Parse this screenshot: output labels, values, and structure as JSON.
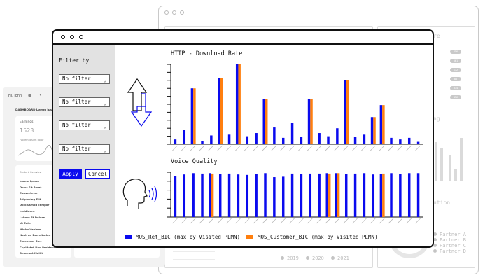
{
  "back_right": {
    "right_label_1": "re",
    "right_label_2": "ng",
    "right_label_3": "ution",
    "pill_values": [
      "456",
      "561",
      "132",
      "88",
      "334",
      "456"
    ],
    "years": [
      "2019",
      "2020",
      "2021"
    ],
    "partners": [
      "Partner A",
      "Partner B",
      "Partner C",
      "Partner D"
    ]
  },
  "back_left": {
    "greeting": "Hi, John",
    "subtitle": "DASHBOARD Lorem Ipsum",
    "earnings_label": "Earnings",
    "earnings_value": "1523",
    "earnings_note": "*Lorem ipsum dolor",
    "list_header": "Content Overview",
    "list_items": [
      "Lorem Ipsum",
      "Dolor Sit Amet",
      "Consectetur",
      "Adipiscing Elit",
      "Do Eiusmod Tempor",
      "Incididunt",
      "Labore Et Dolore",
      "Ut Enim",
      "Minim Veniam",
      "Nostrud Exercitation",
      "Excepteur Sint",
      "Cupidatat Non Proident",
      "Deserunt Mollit"
    ]
  },
  "sidebar": {
    "title": "Filter by",
    "filters": [
      "No filter",
      "No filter",
      "No filter",
      "No filter"
    ],
    "apply_label": "Apply",
    "cancel_label": "Cancel"
  },
  "colors": {
    "series_ref": "#0a0aee",
    "series_customer": "#ff7f0e"
  },
  "icons": [
    "download-arrows-icon",
    "speaking-head-icon"
  ],
  "chart_data": [
    {
      "type": "bar",
      "title": "HTTP - Download Rate",
      "categories": [
        "",
        "",
        "",
        "",
        "",
        "",
        "",
        "",
        "",
        "",
        "",
        "",
        "",
        "",
        "",
        "",
        "",
        "",
        "",
        "",
        "",
        "",
        "",
        "",
        "",
        "",
        "",
        ""
      ],
      "ylim": [
        0,
        100
      ],
      "series": [
        {
          "name": "MOS_Ref_BIC (max by Visited PLMN)",
          "values": [
            6,
            18,
            70,
            4,
            11,
            83,
            12,
            100,
            10,
            14,
            57,
            21,
            8,
            27,
            9,
            57,
            14,
            10,
            20,
            80,
            9,
            12,
            34,
            49,
            8,
            6,
            8,
            3
          ]
        },
        {
          "name": "MOS_Customer_BIC (max by Visited PLMN)",
          "values": [
            0,
            0,
            70,
            0,
            0,
            83,
            0,
            100,
            0,
            0,
            57,
            0,
            0,
            0,
            0,
            57,
            0,
            0,
            0,
            80,
            0,
            0,
            34,
            49,
            0,
            0,
            0,
            0
          ]
        }
      ]
    },
    {
      "type": "bar",
      "title": "Voice Quality",
      "categories": [
        "",
        "",
        "",
        "",
        "",
        "",
        "",
        "",
        "",
        "",
        "",
        "",
        "",
        "",
        "",
        "",
        "",
        "",
        "",
        "",
        "",
        "",
        "",
        "",
        "",
        "",
        "",
        ""
      ],
      "ylim": [
        0,
        100
      ],
      "series": [
        {
          "name": "MOS_Ref_BIC (max by Visited PLMN)",
          "values": [
            92,
            95,
            98,
            97,
            98,
            96,
            97,
            95,
            94,
            96,
            98,
            89,
            90,
            97,
            96,
            97,
            97,
            98,
            98,
            96,
            97,
            98,
            95,
            96,
            98,
            96,
            98,
            98
          ]
        },
        {
          "name": "MOS_Customer_BIC (max by Visited PLMN)",
          "values": [
            0,
            0,
            0,
            0,
            97,
            0,
            0,
            0,
            0,
            0,
            0,
            0,
            0,
            0,
            0,
            0,
            0,
            97,
            98,
            0,
            0,
            0,
            0,
            97,
            0,
            0,
            0,
            0
          ]
        }
      ]
    }
  ]
}
